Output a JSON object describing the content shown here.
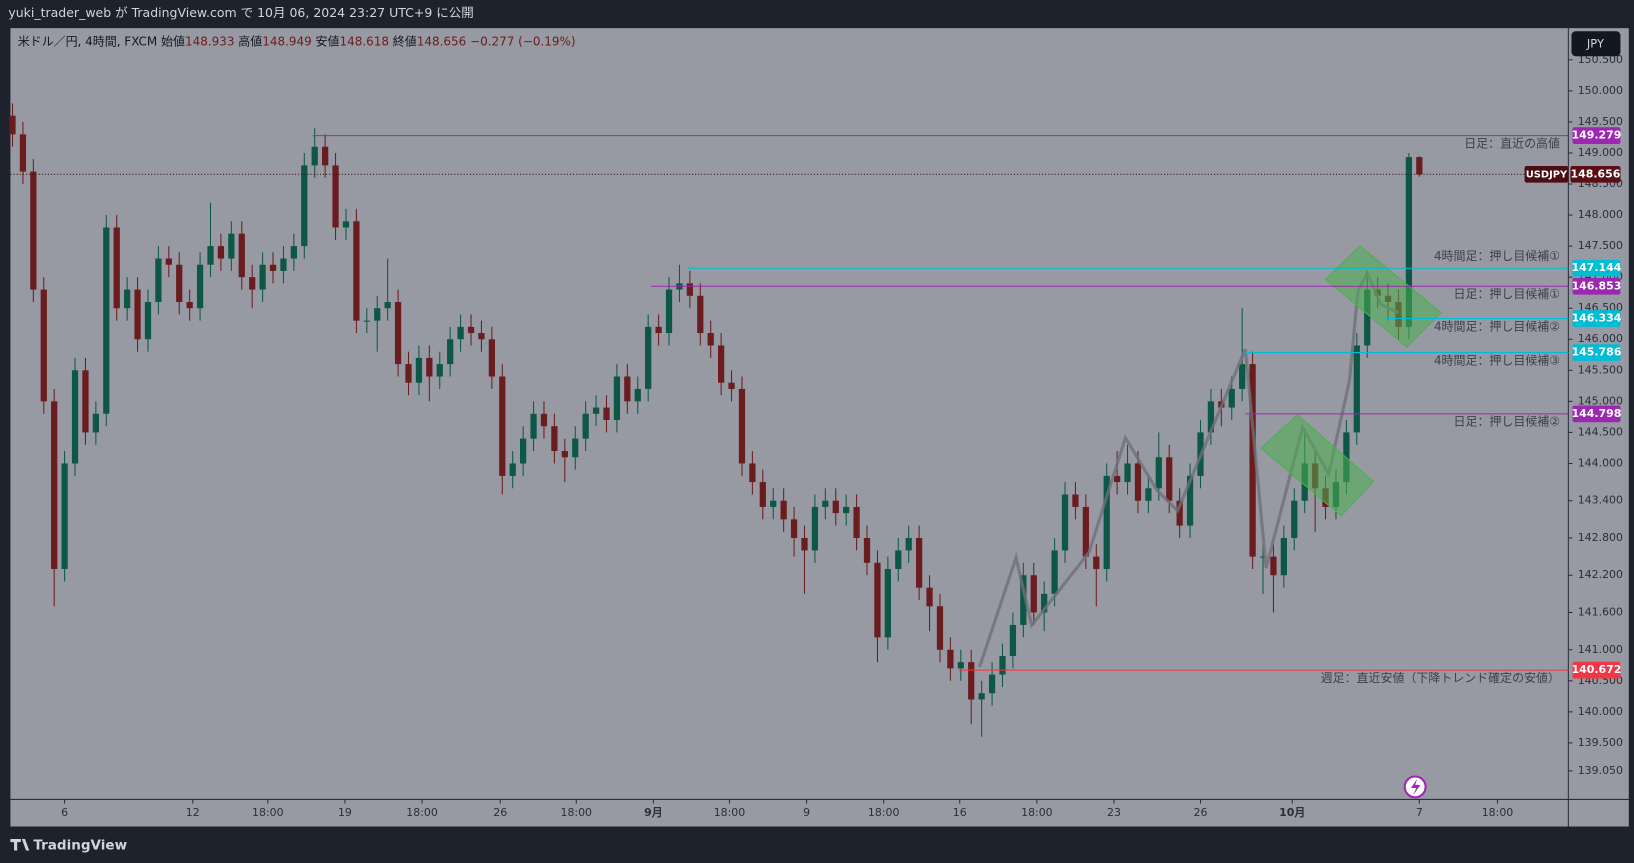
{
  "header": {
    "title": "yuki_trader_web が TradingView.com で 10月 06, 2024 23:27 UTC+9 に公開"
  },
  "footer": {
    "brand": "TradingView"
  },
  "chart_data": {
    "type": "candlestick",
    "legend": {
      "symbol": "米ドル／円, 4時間, FXCM",
      "open_label": "始値",
      "high_label": "高値",
      "low_label": "安値",
      "close_label": "終値",
      "change": "−0.277 (−0.19%)"
    },
    "symbol": "USDJPY",
    "currency": "JPY",
    "up_color": "#0d5747",
    "down_color": "#6b1c1f",
    "open": [
      149.6,
      149.3,
      148.7,
      146.8,
      145.0,
      142.3,
      144.0,
      145.5,
      144.5,
      144.8,
      147.8,
      146.5,
      146.8,
      146.0,
      146.6,
      147.3,
      147.2,
      146.6,
      146.5,
      147.2,
      147.5,
      147.3,
      147.7,
      147.0,
      146.8,
      147.2,
      147.1,
      147.3,
      147.5,
      148.8,
      149.1,
      148.8,
      147.8,
      147.9,
      146.3,
      146.3,
      146.5,
      146.6,
      145.6,
      145.3,
      145.7,
      145.4,
      145.6,
      146.0,
      146.2,
      146.1,
      146.0,
      145.4,
      143.8,
      144.0,
      144.4,
      144.8,
      144.6,
      144.2,
      144.1,
      144.4,
      144.8,
      144.9,
      144.7,
      145.4,
      145.0,
      145.2,
      146.2,
      146.1,
      146.8,
      146.9,
      146.7,
      146.1,
      145.9,
      145.3,
      145.2,
      144.0,
      143.7,
      143.3,
      143.4,
      143.1,
      142.8,
      142.6,
      143.3,
      143.4,
      143.2,
      143.3,
      142.8,
      142.4,
      141.2,
      142.3,
      142.6,
      142.8,
      142.0,
      141.7,
      141.0,
      140.7,
      140.8,
      140.2,
      140.3,
      140.6,
      140.9,
      141.4,
      142.2,
      141.6,
      141.9,
      142.6,
      143.5,
      143.3,
      142.5,
      142.3,
      143.8,
      143.7,
      144.0,
      143.4,
      143.6,
      144.1,
      143.4,
      143.0,
      143.8,
      144.5,
      145.0,
      144.9,
      145.2,
      145.6,
      142.5,
      142.5,
      142.2,
      142.8,
      143.4,
      144.0,
      143.6,
      143.3,
      143.7,
      144.5,
      145.9,
      146.8,
      146.7,
      146.6,
      146.2,
      148.933
    ],
    "high": [
      149.8,
      149.5,
      148.9,
      147.0,
      145.2,
      144.2,
      145.7,
      145.7,
      145.0,
      148.0,
      148.0,
      147.0,
      147.0,
      146.8,
      147.5,
      147.5,
      147.4,
      146.8,
      147.4,
      148.2,
      147.7,
      147.9,
      147.9,
      147.2,
      147.4,
      147.4,
      147.5,
      147.7,
      149.0,
      149.4,
      149.3,
      149.0,
      148.1,
      148.1,
      146.5,
      146.7,
      147.3,
      146.8,
      145.8,
      145.9,
      145.9,
      145.8,
      146.2,
      146.4,
      146.4,
      146.3,
      146.2,
      145.6,
      144.2,
      144.6,
      145.0,
      145.0,
      144.8,
      144.4,
      144.6,
      145.0,
      145.1,
      145.1,
      145.6,
      145.6,
      145.4,
      146.4,
      146.4,
      147.0,
      147.2,
      147.1,
      146.9,
      146.3,
      146.1,
      145.5,
      145.4,
      144.2,
      143.9,
      143.6,
      143.6,
      143.3,
      143.0,
      143.5,
      143.6,
      143.6,
      143.5,
      143.5,
      143.0,
      142.6,
      142.5,
      142.8,
      143.0,
      143.0,
      142.2,
      141.9,
      141.2,
      141.0,
      141.0,
      140.5,
      140.8,
      141.1,
      141.6,
      142.4,
      142.4,
      142.1,
      142.8,
      143.7,
      143.7,
      143.5,
      142.7,
      144.0,
      144.2,
      144.3,
      144.2,
      143.8,
      144.5,
      144.3,
      143.6,
      144.0,
      144.7,
      145.2,
      145.2,
      145.4,
      146.5,
      145.8,
      142.7,
      142.7,
      143.0,
      143.6,
      144.5,
      144.2,
      143.8,
      143.9,
      144.7,
      146.1,
      147.1,
      147.0,
      146.9,
      146.8,
      149.0,
      148.949
    ],
    "low": [
      149.1,
      148.5,
      146.6,
      144.8,
      141.7,
      142.1,
      143.8,
      144.3,
      144.3,
      144.6,
      146.3,
      146.3,
      145.8,
      145.8,
      146.4,
      147.0,
      146.4,
      146.3,
      146.3,
      147.0,
      147.1,
      147.1,
      146.8,
      146.5,
      146.6,
      146.9,
      146.9,
      147.1,
      147.3,
      148.6,
      148.6,
      147.6,
      147.6,
      146.1,
      146.1,
      145.8,
      146.3,
      145.4,
      145.1,
      145.1,
      145.0,
      145.2,
      145.4,
      145.8,
      145.9,
      145.8,
      145.2,
      143.5,
      143.6,
      143.8,
      144.2,
      144.4,
      144.0,
      143.7,
      143.9,
      144.2,
      144.6,
      144.5,
      144.5,
      144.8,
      144.8,
      145.0,
      145.9,
      145.9,
      146.6,
      146.5,
      145.9,
      145.7,
      145.1,
      145.0,
      143.8,
      143.5,
      143.1,
      143.1,
      142.9,
      142.5,
      141.9,
      142.4,
      143.1,
      143.0,
      143.0,
      142.6,
      142.2,
      140.8,
      141.0,
      142.1,
      142.4,
      141.8,
      141.3,
      140.8,
      140.5,
      140.5,
      139.8,
      139.6,
      140.1,
      140.4,
      140.7,
      141.2,
      141.4,
      141.3,
      141.7,
      142.4,
      143.1,
      142.3,
      141.7,
      142.1,
      143.5,
      143.5,
      143.2,
      143.2,
      143.4,
      143.2,
      142.8,
      142.8,
      143.6,
      144.3,
      144.6,
      144.7,
      145.0,
      142.3,
      141.9,
      141.6,
      142.0,
      142.6,
      143.2,
      142.9,
      143.1,
      143.1,
      143.5,
      144.3,
      145.7,
      146.5,
      146.3,
      146.0,
      146.0,
      148.618
    ],
    "close": [
      149.3,
      148.7,
      146.8,
      145.0,
      142.3,
      144.0,
      145.5,
      144.5,
      144.8,
      147.8,
      146.5,
      146.8,
      146.0,
      146.6,
      147.3,
      147.2,
      146.6,
      146.5,
      147.2,
      147.5,
      147.3,
      147.7,
      147.0,
      146.8,
      147.2,
      147.1,
      147.3,
      147.5,
      148.8,
      149.1,
      148.8,
      147.8,
      147.9,
      146.3,
      146.3,
      146.5,
      146.6,
      145.6,
      145.3,
      145.7,
      145.4,
      145.6,
      146.0,
      146.2,
      146.1,
      146.0,
      145.4,
      143.8,
      144.0,
      144.4,
      144.8,
      144.6,
      144.2,
      144.1,
      144.4,
      144.8,
      144.9,
      144.7,
      145.4,
      145.0,
      145.2,
      146.2,
      146.1,
      146.8,
      146.9,
      146.7,
      146.1,
      145.9,
      145.3,
      145.2,
      144.0,
      143.7,
      143.3,
      143.4,
      143.1,
      142.8,
      142.6,
      143.3,
      143.4,
      143.2,
      143.3,
      142.8,
      142.4,
      141.2,
      142.3,
      142.6,
      142.8,
      142.0,
      141.7,
      141.0,
      140.7,
      140.8,
      140.2,
      140.3,
      140.6,
      140.9,
      141.4,
      142.2,
      141.6,
      141.9,
      142.6,
      143.5,
      143.3,
      142.5,
      142.3,
      143.8,
      143.7,
      144.0,
      143.4,
      143.6,
      144.1,
      143.4,
      143.0,
      143.8,
      144.5,
      145.0,
      144.9,
      145.2,
      145.6,
      142.5,
      142.5,
      142.2,
      142.8,
      143.4,
      144.0,
      143.6,
      143.3,
      143.7,
      144.5,
      145.9,
      146.8,
      146.7,
      146.6,
      146.2,
      148.933,
      148.656
    ],
    "ylim": [
      138.59,
      151.01
    ],
    "yticks": [
      {
        "value": 139.05,
        "label": "139.050"
      },
      {
        "value": 139.5,
        "label": "139.500"
      },
      {
        "value": 140,
        "label": "140.000"
      },
      {
        "value": 140.5,
        "label": "140.500"
      },
      {
        "value": 141,
        "label": "141.000"
      },
      {
        "value": 141.6,
        "label": "141.600"
      },
      {
        "value": 142.2,
        "label": "142.200"
      },
      {
        "value": 142.8,
        "label": "142.800"
      },
      {
        "value": 143.4,
        "label": "143.400"
      },
      {
        "value": 144,
        "label": "144.000"
      },
      {
        "value": 144.5,
        "label": "144.500"
      },
      {
        "value": 145,
        "label": "145.000"
      },
      {
        "value": 145.5,
        "label": "145.500"
      },
      {
        "value": 146,
        "label": "146.000"
      },
      {
        "value": 146.5,
        "label": "146.500"
      },
      {
        "value": 147,
        "label": "147.000"
      },
      {
        "value": 147.5,
        "label": "147.500"
      },
      {
        "value": 148,
        "label": "148.000"
      },
      {
        "value": 148.5,
        "label": "148.500"
      },
      {
        "value": 149,
        "label": "149.000"
      },
      {
        "value": 149.5,
        "label": "149.500"
      },
      {
        "value": 150,
        "label": "150.000"
      },
      {
        "value": 150.5,
        "label": "150.500"
      }
    ],
    "xticks": [
      {
        "value": 5,
        "label": "6"
      },
      {
        "value": 17.3,
        "label": "12"
      },
      {
        "value": 24.5,
        "label": "18:00"
      },
      {
        "value": 31.9,
        "label": "19"
      },
      {
        "value": 39.3,
        "label": "18:00"
      },
      {
        "value": 46.8,
        "label": "26"
      },
      {
        "value": 54.1,
        "label": "18:00"
      },
      {
        "value": 61.5,
        "label": "9月"
      },
      {
        "value": 68.8,
        "label": "18:00"
      },
      {
        "value": 76.2,
        "label": "9"
      },
      {
        "value": 83.6,
        "label": "18:00"
      },
      {
        "value": 90.9,
        "label": "16"
      },
      {
        "value": 98.3,
        "label": "18:00"
      },
      {
        "value": 105.7,
        "label": "23"
      },
      {
        "value": 114,
        "label": "26"
      },
      {
        "value": 122.8,
        "label": "10月"
      },
      {
        "value": 135,
        "label": "7"
      },
      {
        "value": 142.5,
        "label": "18:00"
      }
    ],
    "grid": false,
    "levels": [
      {
        "value": 149.279,
        "label": "日足：直近の高値",
        "color": "#9c27b0"
      },
      {
        "value": 147.144,
        "label": "4時間足：押し目候補①",
        "color": "#00bcd4"
      },
      {
        "value": 146.853,
        "label": "日足：押し目候補①",
        "color": "#9c27b0"
      },
      {
        "value": 146.334,
        "label": "4時間足：押し目候補②",
        "color": "#00bcd4"
      },
      {
        "value": 145.786,
        "label": "4時間足：押し目候補③",
        "color": "#00bcd4"
      },
      {
        "value": 144.798,
        "label": "日足：押し目候補②",
        "color": "#9c27b0"
      },
      {
        "value": 140.672,
        "label": "週足：直近安値（下降トレンド確定の安値）",
        "color": "#f23645"
      }
    ]
  }
}
